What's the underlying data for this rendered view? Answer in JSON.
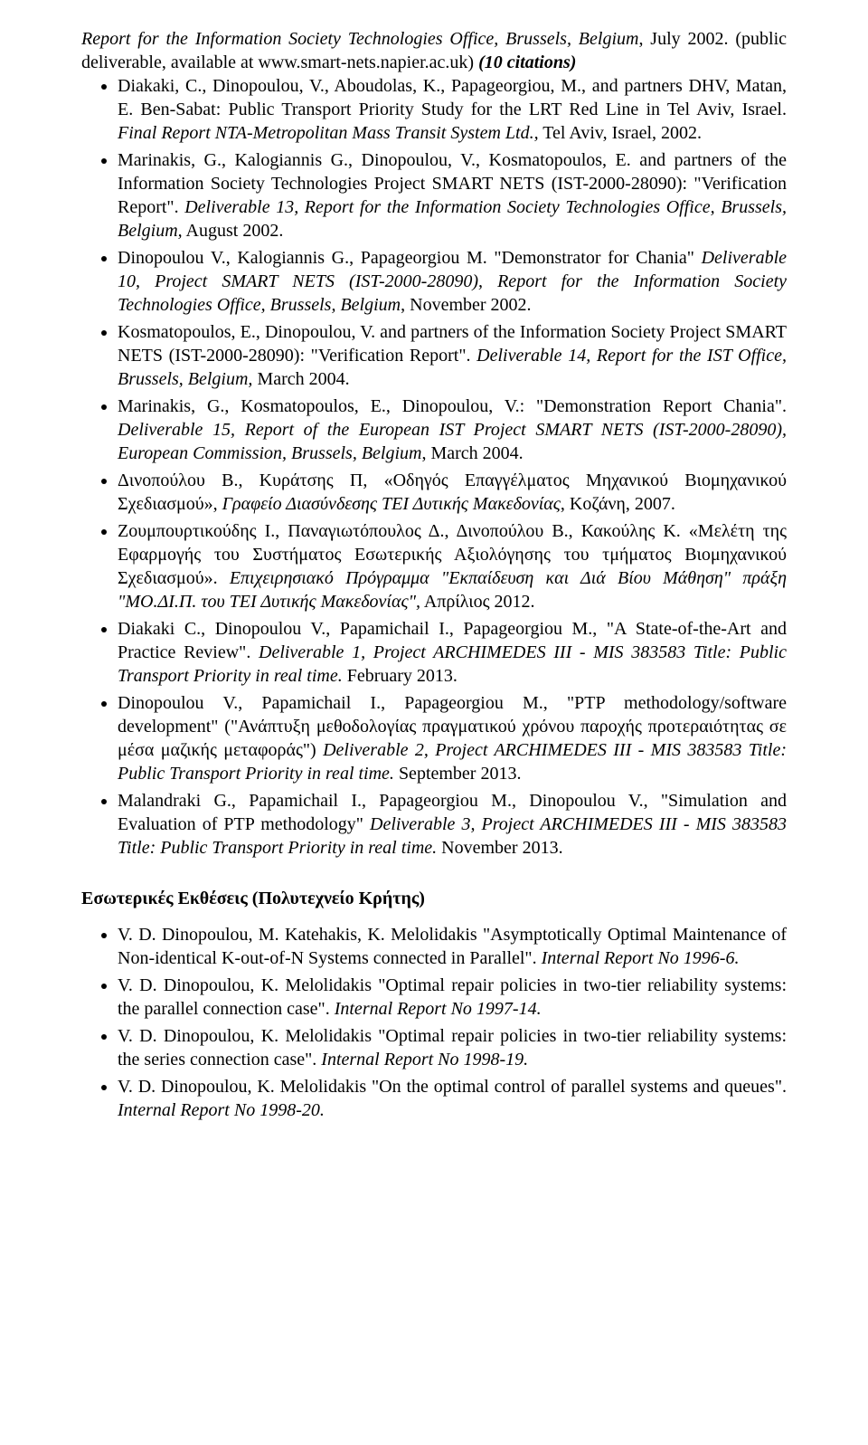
{
  "entries_top": [
    {
      "html": "<span class='italic'>Report for the Information Society Technologies Office, Brussels, Belgium</span>, July 2002. (public deliverable, available at www.smart-nets.napier.ac.uk) <span class='italic bold'>(10 citations)</span>"
    },
    {
      "html": "Diakaki, C., Dinopoulou, V., Aboudolas, K., Papageorgiou, M., and partners DHV, Matan, E. Ben-Sabat: Public Transport Priority Study for the LRT Red Line in Tel Aviv, Israel. <span class='italic'>Final Report NTA-Metropolitan Mass Transit System Ltd.,</span> Tel Aviv, Israel, 2002."
    },
    {
      "html": "Marinakis, G., Kalogiannis G., Dinopoulou, V., Kosmatopoulos, E. and partners of the Information Society Technologies Project SMART NETS (IST-2000-28090): \"Verification Report\". <span class='italic'>Deliverable 13, Report for the Information Society Technologies Office, Brussels, Belgium,</span> August 2002."
    },
    {
      "html": "Dinopoulou V., Kalogiannis G., Papageorgiou M. \"Demonstrator for Chania\" <span class='italic'>Deliverable 10, Project SMART NETS (IST-2000-28090), Report for the Information Society Technologies Office, Brussels, Belgium</span>, November 2002."
    },
    {
      "html": "Kosmatopoulos, E., Dinopoulou, V. and partners of the Information Society Project SMART NETS (IST-2000-28090): \"Verification Report\". <span class='italic'>Deliverable 14, Report for the IST Office, Brussels, Belgium,</span> March 2004."
    },
    {
      "html": "Marinakis, G., Kosmatopoulos, E., Dinopoulou, V.: \"Demonstration Report Chania\". <span class='italic'>Deliverable 15, Report of the European IST Project SMART NETS (IST-2000-28090), European Commission, Brussels, Belgium</span>, March 2004."
    },
    {
      "html": "Δινοπούλου Β., Κυράτσης Π, «Οδηγός Επαγγέλματος Μηχανικού Βιομηχανικού Σχεδιασμού», <span class='italic'>Γραφείο Διασύνδεσης ΤΕΙ Δυτικής Μακεδονίας</span>, Κοζάνη, 2007."
    },
    {
      "html": "Ζουμπουρτικούδης Ι., Παναγιωτόπουλος Δ., Δινοπούλου Β., Κακούλης Κ. «Μελέτη της Εφαρμογής του Συστήματος Εσωτερικής Αξιολόγησης του τμήματος Βιομηχανικού Σχεδιασμού». <span class='italic'>Επιχειρησιακό Πρόγραμμα \"Εκπαίδευση και Διά Βίου Μάθηση\" πράξη \"ΜΟ.ΔΙ.Π. του ΤΕΙ Δυτικής Μακεδονίας\",</span> Απρίλιος 2012."
    },
    {
      "html": "Diakaki C., Dinopoulou V., Papamichail I., Papageorgiou M., \"A State-of-the-Art and Practice Review\". <span class='italic'>Deliverable 1, Project ARCHIMEDES III - MIS 383583 Title: Public Transport Priority in real time.</span> February 2013."
    },
    {
      "html": "Dinopoulou V., Papamichail I., Papageorgiou M., \"PTP methodology/software development\" (\"Ανάπτυξη μεθοδολογίας πραγματικού χρόνου παροχής προτεραιότητας σε μέσα μαζικής μεταφοράς\") <span class='italic'>Deliverable 2, Project ARCHIMEDES III - MIS 383583 Title: Public Transport Priority in real time.</span> September 2013."
    },
    {
      "html": "Malandraki G., Papamichail I., Papageorgiou M., Dinopoulou V., \"Simulation and Evaluation of PTP methodology\" <span class='italic'>Deliverable 3, Project ARCHIMEDES III - MIS 383583 Title: Public Transport Priority in real time.</span> November 2013."
    }
  ],
  "section_heading": "Εσωτερικές Εκθέσεις (Πολυτεχνείο Κρήτης)",
  "entries_bottom": [
    {
      "html": "V. D. Dinopoulou, M. Katehakis, K. Melolidakis \"Asymptotically Optimal Maintenance of Non-identical K-out-of-N Systems connected in Parallel\". <span class='italic'>Internal Report No 1996-6.</span>"
    },
    {
      "html": "V. D. Dinopoulou, K. Melolidakis \"Optimal repair policies in two-tier reliability systems: the parallel connection case\". <span class='italic'>Internal Report No 1997-14.</span>"
    },
    {
      "html": "V. D. Dinopoulou, K. Melolidakis \"Optimal repair policies in two-tier reliability systems: the series connection case\". <span class='italic'>Internal Report No 1998-19.</span>"
    },
    {
      "html": "V. D. Dinopoulou, K. Melolidakis \"On the optimal control of parallel systems and queues\". <span class='italic'>Internal Report No 1998-20.</span>"
    }
  ]
}
